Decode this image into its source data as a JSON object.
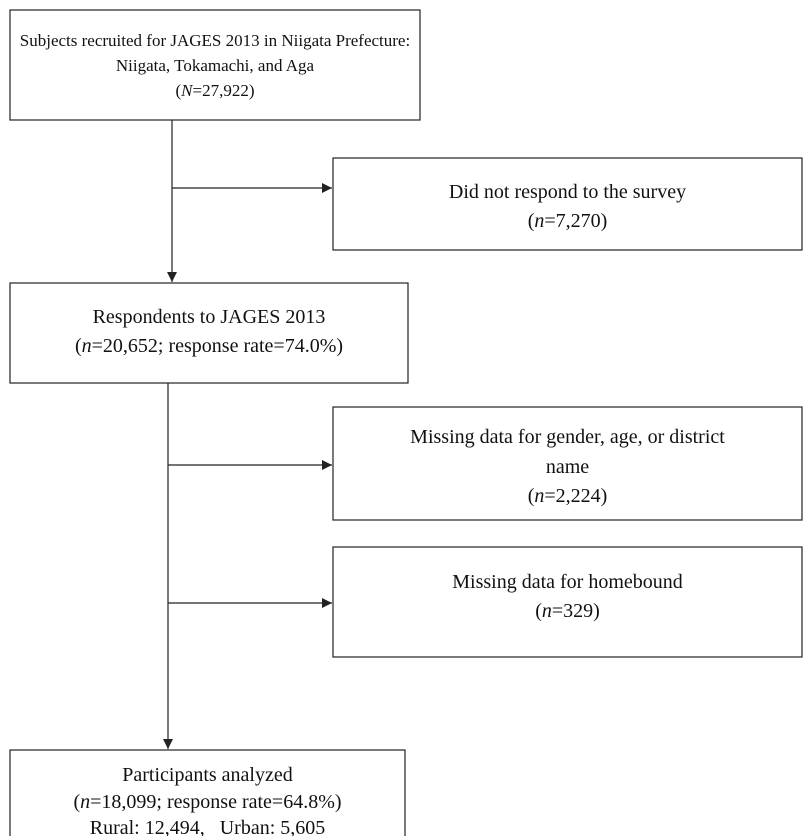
{
  "boxes": [
    {
      "lines": [
        [
          {
            "text": "Subjects recruited for JAGES 2013 in Niigata Prefecture:"
          }
        ],
        [
          {
            "text": "Niigata, Tokamachi, and Aga"
          }
        ],
        [
          {
            "text": "("
          },
          {
            "text": "N",
            "italic": true
          },
          {
            "text": "=27,922)"
          }
        ]
      ]
    },
    {
      "lines": [
        [
          {
            "text": "Did not respond to the survey"
          }
        ],
        [
          {
            "text": "("
          },
          {
            "text": "n",
            "italic": true
          },
          {
            "text": "=7,270)"
          }
        ]
      ]
    },
    {
      "lines": [
        [
          {
            "text": "Respondents to JAGES 2013"
          }
        ],
        [
          {
            "text": "("
          },
          {
            "text": "n",
            "italic": true
          },
          {
            "text": "=20,652; response rate=74.0%)"
          }
        ]
      ]
    },
    {
      "lines": [
        [
          {
            "text": "Missing data for gender, age, or district"
          }
        ],
        [
          {
            "text": "name"
          }
        ],
        [
          {
            "text": "("
          },
          {
            "text": "n",
            "italic": true
          },
          {
            "text": "=2,224)"
          }
        ]
      ]
    },
    {
      "lines": [
        [
          {
            "text": "Missing data for homebound"
          }
        ],
        [
          {
            "text": "("
          },
          {
            "text": "n",
            "italic": true
          },
          {
            "text": "=329)"
          }
        ]
      ]
    },
    {
      "lines": [
        [
          {
            "text": "Participants analyzed"
          }
        ],
        [
          {
            "text": "("
          },
          {
            "text": "n",
            "italic": true
          },
          {
            "text": "=18,099; response rate=64.8%)"
          }
        ],
        [
          {
            "text": "Rural: 12,494,   Urban: 5,605"
          }
        ]
      ]
    }
  ]
}
